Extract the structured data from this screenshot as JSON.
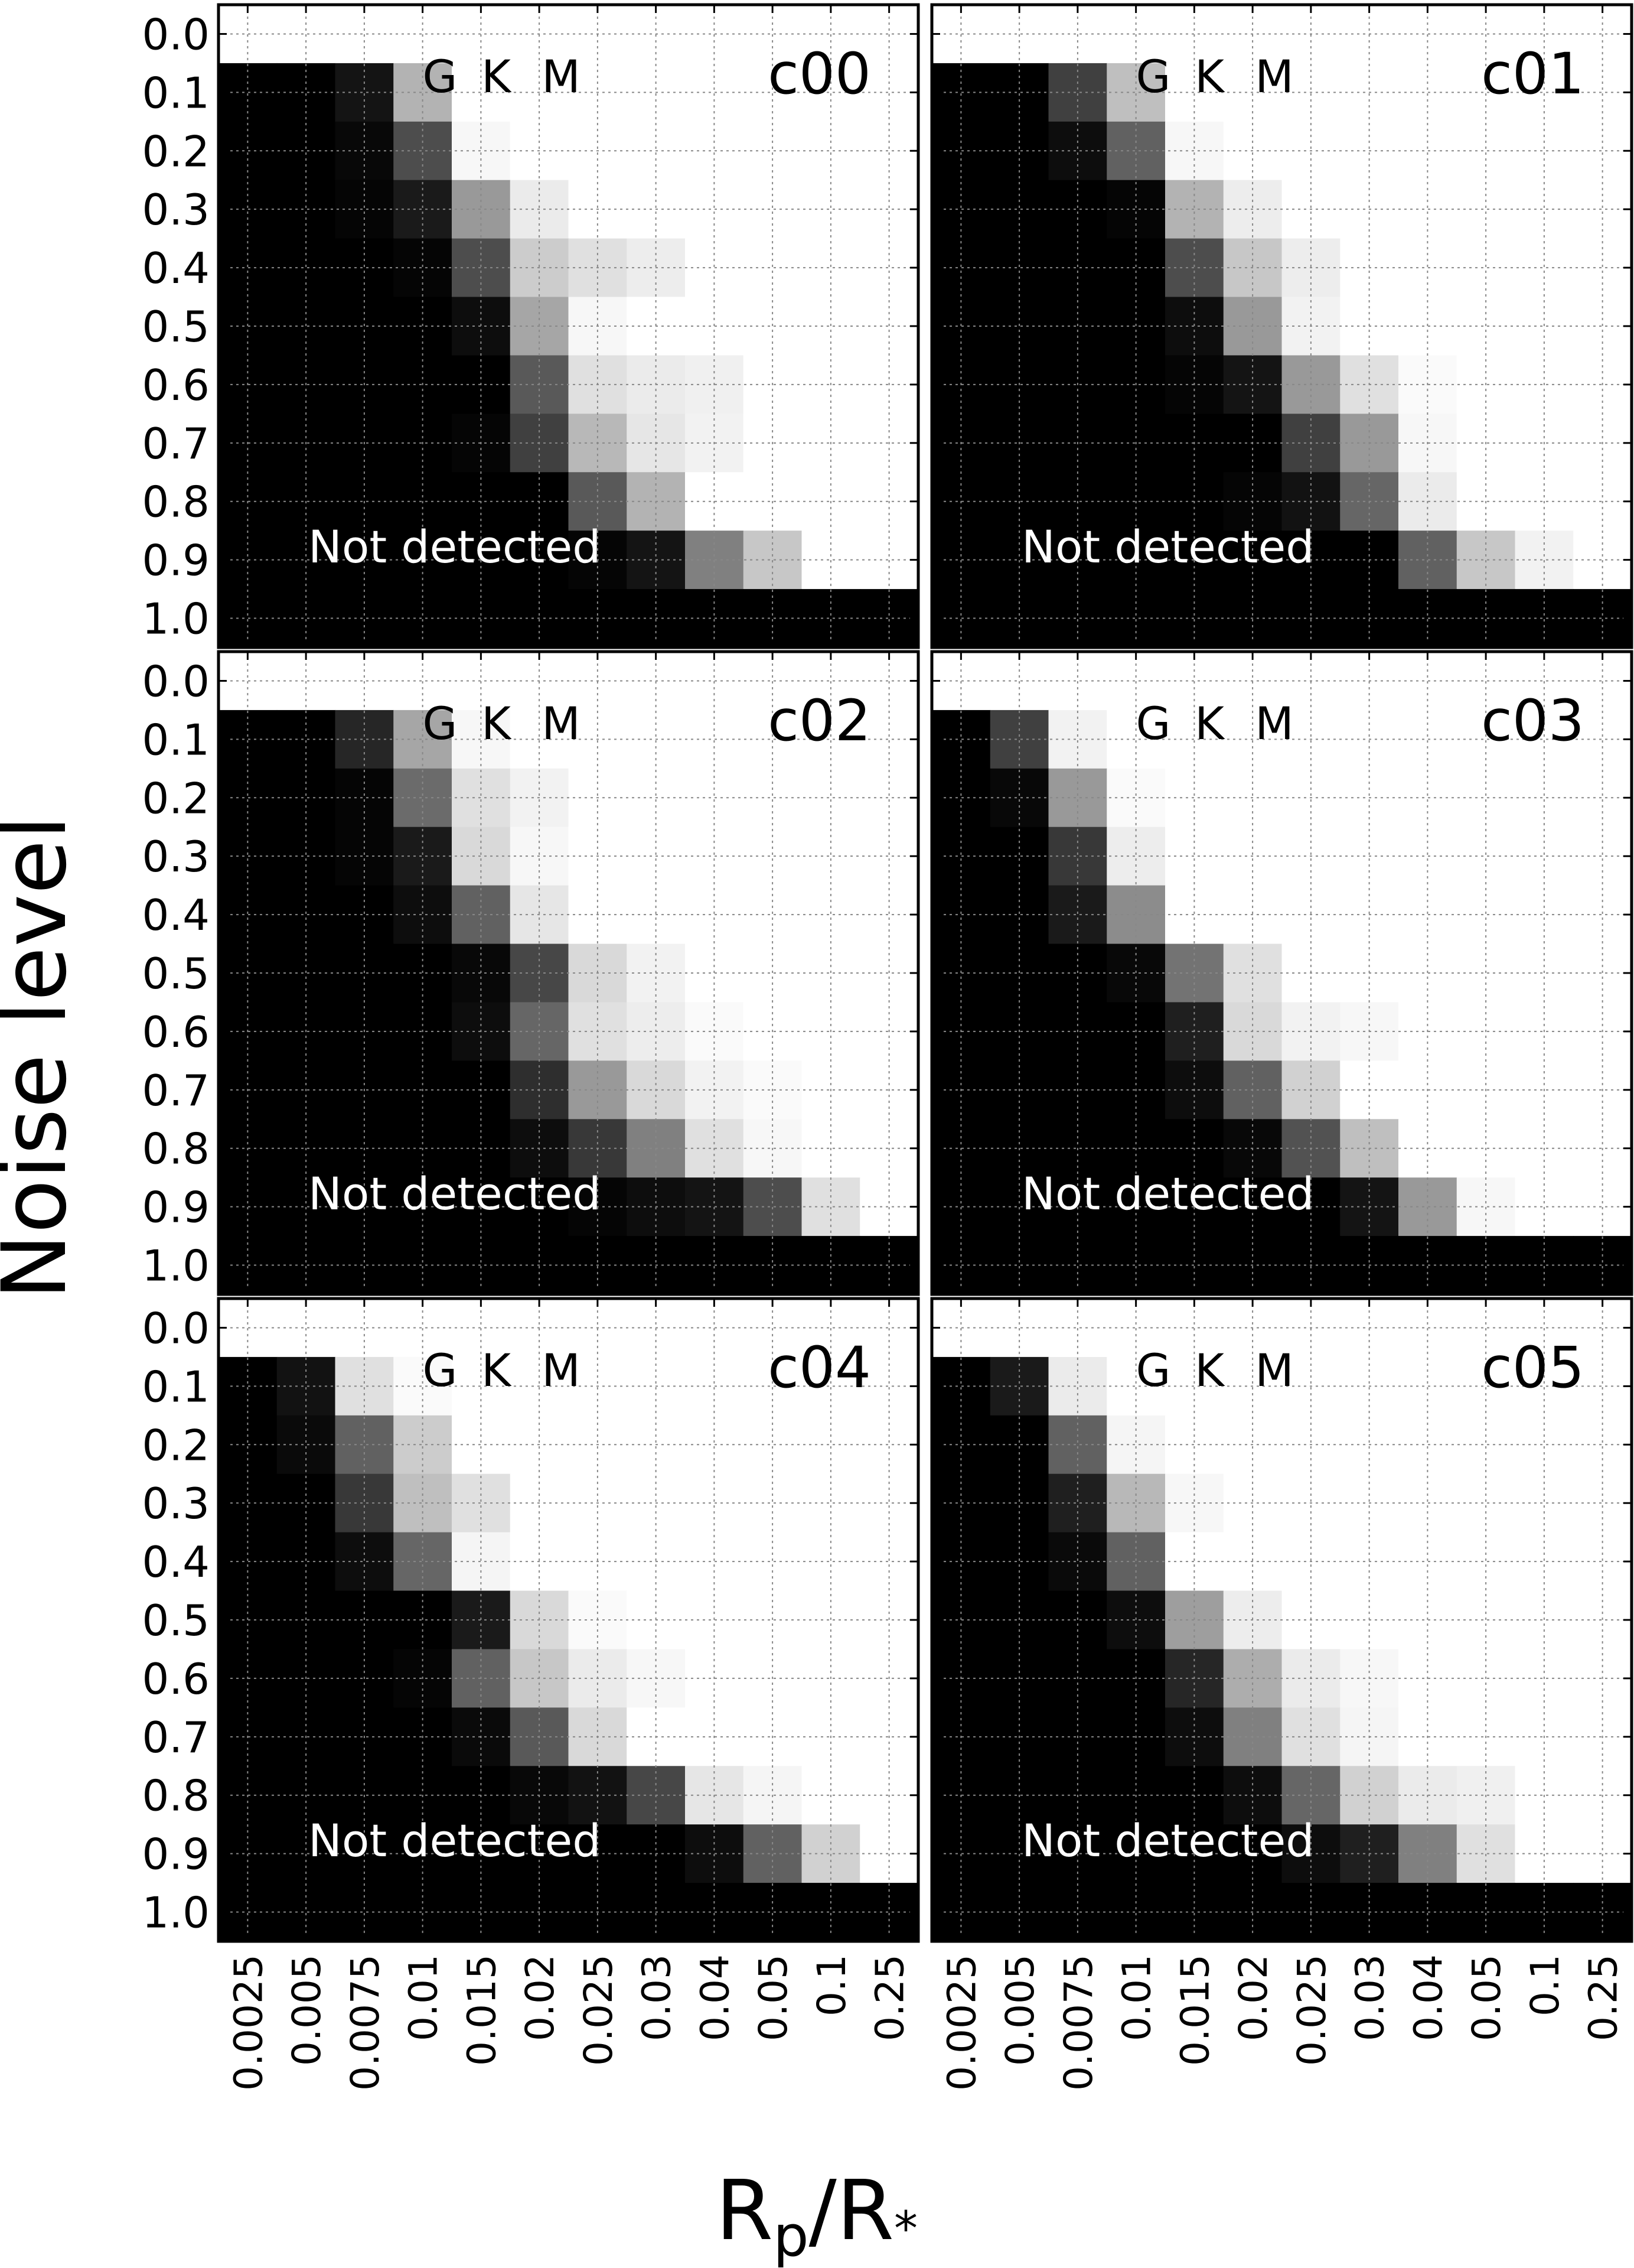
{
  "figure": {
    "ylabel": "Noise level",
    "xlabel_main": "R",
    "xlabel_sub1": "p",
    "xlabel_mid": "/R",
    "xlabel_sub2": "*"
  },
  "chart_data": {
    "type": "heatmap",
    "colormap": "gray (0 = black, 1 = white)",
    "x_categories": [
      "0.0025",
      "0.005",
      "0.0075",
      "0.01",
      "0.015",
      "0.02",
      "0.025",
      "0.03",
      "0.04",
      "0.05",
      "0.1",
      "0.25"
    ],
    "y_categories": [
      "0.0",
      "0.1",
      "0.2",
      "0.3",
      "0.4",
      "0.5",
      "0.6",
      "0.7",
      "0.8",
      "0.9",
      "1.0"
    ],
    "xlabel": "Rp/R*",
    "ylabel": "Noise level",
    "grid": true,
    "panels": [
      {
        "title": "c00",
        "star_labels": [
          "G",
          "K",
          "M"
        ],
        "annotation": "Not detected",
        "values": [
          [
            1,
            1,
            1,
            1,
            1,
            1,
            1,
            1,
            1,
            1,
            1,
            1
          ],
          [
            0,
            0,
            0.08,
            0.7,
            1,
            1,
            1,
            1,
            1,
            1,
            1,
            1
          ],
          [
            0,
            0,
            0.03,
            0.3,
            0.97,
            1,
            1,
            1,
            1,
            1,
            1,
            1
          ],
          [
            0,
            0,
            0.02,
            0.1,
            0.6,
            0.92,
            1,
            1,
            1,
            1,
            1,
            1
          ],
          [
            0,
            0,
            0,
            0.02,
            0.3,
            0.8,
            0.88,
            0.93,
            1,
            1,
            1,
            1
          ],
          [
            0,
            0,
            0,
            0,
            0.05,
            0.65,
            0.97,
            1,
            1,
            1,
            1,
            1
          ],
          [
            0,
            0,
            0,
            0,
            0,
            0.35,
            0.88,
            0.92,
            0.94,
            1,
            1,
            1
          ],
          [
            0,
            0,
            0,
            0,
            0.02,
            0.25,
            0.72,
            0.9,
            0.95,
            1,
            1,
            1
          ],
          [
            0,
            0,
            0,
            0,
            0,
            0,
            0.35,
            0.7,
            1,
            1,
            1,
            1
          ],
          [
            0,
            0,
            0,
            0,
            0,
            0,
            0.02,
            0.08,
            0.5,
            0.78,
            1,
            1
          ],
          [
            0,
            0,
            0,
            0,
            0,
            0,
            0,
            0,
            0,
            0,
            0,
            0
          ]
        ]
      },
      {
        "title": "c01",
        "star_labels": [
          "G",
          "K",
          "M"
        ],
        "annotation": "Not detected",
        "values": [
          [
            1,
            1,
            1,
            1,
            1,
            1,
            1,
            1,
            1,
            1,
            1,
            1
          ],
          [
            0,
            0,
            0.25,
            0.75,
            1,
            1,
            1,
            1,
            1,
            1,
            1,
            1
          ],
          [
            0,
            0,
            0.05,
            0.38,
            0.97,
            1,
            1,
            1,
            1,
            1,
            1,
            1
          ],
          [
            0,
            0,
            0,
            0.02,
            0.7,
            0.93,
            1,
            1,
            1,
            1,
            1,
            1
          ],
          [
            0,
            0,
            0,
            0,
            0.3,
            0.78,
            0.93,
            1,
            1,
            1,
            1,
            1
          ],
          [
            0,
            0,
            0,
            0,
            0.05,
            0.6,
            0.95,
            1,
            1,
            1,
            1,
            1
          ],
          [
            0,
            0,
            0,
            0,
            0.02,
            0.08,
            0.6,
            0.88,
            0.98,
            1,
            1,
            1
          ],
          [
            0,
            0,
            0,
            0,
            0,
            0,
            0.25,
            0.6,
            0.97,
            1,
            1,
            1
          ],
          [
            0,
            0,
            0,
            0,
            0,
            0.02,
            0.07,
            0.4,
            0.92,
            1,
            1,
            1
          ],
          [
            0,
            0,
            0,
            0,
            0,
            0,
            0,
            0,
            0.38,
            0.78,
            0.95,
            1
          ],
          [
            0,
            0,
            0,
            0,
            0,
            0,
            0,
            0,
            0,
            0,
            0,
            0
          ]
        ]
      },
      {
        "title": "c02",
        "star_labels": [
          "G",
          "K",
          "M"
        ],
        "annotation": "Not detected",
        "values": [
          [
            1,
            1,
            1,
            1,
            1,
            1,
            1,
            1,
            1,
            1,
            1,
            1
          ],
          [
            0,
            0,
            0.15,
            0.65,
            0.97,
            1,
            1,
            1,
            1,
            1,
            1,
            1
          ],
          [
            0,
            0,
            0.02,
            0.42,
            0.88,
            0.95,
            1,
            1,
            1,
            1,
            1,
            1
          ],
          [
            0,
            0,
            0.02,
            0.1,
            0.85,
            0.97,
            1,
            1,
            1,
            1,
            1,
            1
          ],
          [
            0,
            0,
            0,
            0.05,
            0.38,
            0.9,
            1,
            1,
            1,
            1,
            1,
            1
          ],
          [
            0,
            0,
            0,
            0,
            0.03,
            0.28,
            0.85,
            0.95,
            1,
            1,
            1,
            1
          ],
          [
            0,
            0,
            0,
            0,
            0.05,
            0.4,
            0.88,
            0.93,
            0.98,
            1,
            1,
            1
          ],
          [
            0,
            0,
            0,
            0,
            0,
            0.18,
            0.6,
            0.85,
            0.95,
            0.98,
            1,
            1
          ],
          [
            0,
            0,
            0,
            0,
            0,
            0.05,
            0.22,
            0.5,
            0.88,
            0.97,
            1,
            1
          ],
          [
            0,
            0,
            0,
            0,
            0,
            0,
            0.02,
            0.05,
            0.08,
            0.3,
            0.88,
            1
          ],
          [
            0,
            0,
            0,
            0,
            0,
            0,
            0,
            0,
            0,
            0,
            0,
            0
          ]
        ]
      },
      {
        "title": "c03",
        "star_labels": [
          "G",
          "K",
          "M"
        ],
        "annotation": "Not detected",
        "values": [
          [
            1,
            1,
            1,
            1,
            1,
            1,
            1,
            1,
            1,
            1,
            1,
            1
          ],
          [
            0,
            0.25,
            0.95,
            1,
            1,
            1,
            1,
            1,
            1,
            1,
            1,
            1
          ],
          [
            0,
            0.03,
            0.6,
            0.98,
            1,
            1,
            1,
            1,
            1,
            1,
            1,
            1
          ],
          [
            0,
            0,
            0.22,
            0.93,
            1,
            1,
            1,
            1,
            1,
            1,
            1,
            1
          ],
          [
            0,
            0,
            0.1,
            0.55,
            1,
            1,
            1,
            1,
            1,
            1,
            1,
            1
          ],
          [
            0,
            0,
            0,
            0.03,
            0.45,
            0.88,
            1,
            1,
            1,
            1,
            1,
            1
          ],
          [
            0,
            0,
            0,
            0,
            0.12,
            0.85,
            0.95,
            0.97,
            1,
            1,
            1,
            1
          ],
          [
            0,
            0,
            0,
            0,
            0.05,
            0.38,
            0.82,
            1,
            1,
            1,
            1,
            1
          ],
          [
            0,
            0,
            0,
            0,
            0,
            0.03,
            0.32,
            0.75,
            1,
            1,
            1,
            1
          ],
          [
            0,
            0,
            0,
            0,
            0,
            0,
            0,
            0.08,
            0.6,
            0.97,
            1,
            1
          ],
          [
            0,
            0,
            0,
            0,
            0,
            0,
            0,
            0,
            0,
            0,
            0,
            0
          ]
        ]
      },
      {
        "title": "c04",
        "star_labels": [
          "G",
          "K",
          "M"
        ],
        "annotation": "Not detected",
        "values": [
          [
            1,
            1,
            1,
            1,
            1,
            1,
            1,
            1,
            1,
            1,
            1,
            1
          ],
          [
            0,
            0.07,
            0.88,
            0.98,
            1,
            1,
            1,
            1,
            1,
            1,
            1,
            1
          ],
          [
            0,
            0.04,
            0.38,
            0.8,
            1,
            1,
            1,
            1,
            1,
            1,
            1,
            1
          ],
          [
            0,
            0,
            0.22,
            0.75,
            0.88,
            1,
            1,
            1,
            1,
            1,
            1,
            1
          ],
          [
            0,
            0,
            0.05,
            0.4,
            0.96,
            1,
            1,
            1,
            1,
            1,
            1,
            1
          ],
          [
            0,
            0,
            0,
            0,
            0.1,
            0.85,
            0.98,
            1,
            1,
            1,
            1,
            1
          ],
          [
            0,
            0,
            0,
            0.02,
            0.38,
            0.78,
            0.92,
            0.97,
            1,
            1,
            1,
            1
          ],
          [
            0,
            0,
            0,
            0,
            0.04,
            0.35,
            0.85,
            1,
            1,
            1,
            1,
            1
          ],
          [
            0,
            0,
            0,
            0,
            0,
            0.03,
            0.07,
            0.28,
            0.9,
            0.96,
            1,
            1
          ],
          [
            0,
            0,
            0,
            0,
            0,
            0,
            0,
            0,
            0.05,
            0.38,
            0.82,
            1
          ],
          [
            0,
            0,
            0,
            0,
            0,
            0,
            0,
            0,
            0,
            0,
            0,
            0
          ]
        ]
      },
      {
        "title": "c05",
        "star_labels": [
          "G",
          "K",
          "M"
        ],
        "annotation": "Not detected",
        "values": [
          [
            1,
            1,
            1,
            1,
            1,
            1,
            1,
            1,
            1,
            1,
            1,
            1
          ],
          [
            0,
            0.1,
            0.92,
            1,
            1,
            1,
            1,
            1,
            1,
            1,
            1,
            1
          ],
          [
            0,
            0,
            0.38,
            0.96,
            1,
            1,
            1,
            1,
            1,
            1,
            1,
            1
          ],
          [
            0,
            0,
            0.12,
            0.72,
            0.97,
            1,
            1,
            1,
            1,
            1,
            1,
            1
          ],
          [
            0,
            0,
            0.04,
            0.38,
            1,
            1,
            1,
            1,
            1,
            1,
            1,
            1
          ],
          [
            0,
            0,
            0,
            0.05,
            0.62,
            0.93,
            1,
            1,
            1,
            1,
            1,
            1
          ],
          [
            0,
            0,
            0,
            0,
            0.15,
            0.68,
            0.92,
            0.97,
            1,
            1,
            1,
            1
          ],
          [
            0,
            0,
            0,
            0,
            0.05,
            0.5,
            0.88,
            0.96,
            1,
            1,
            1,
            1
          ],
          [
            0,
            0,
            0,
            0,
            0,
            0.05,
            0.4,
            0.82,
            0.92,
            0.94,
            1,
            1
          ],
          [
            0,
            0,
            0,
            0,
            0,
            0,
            0.05,
            0.12,
            0.5,
            0.88,
            1,
            1
          ],
          [
            0,
            0,
            0,
            0,
            0,
            0,
            0,
            0,
            0,
            0,
            0,
            0
          ]
        ]
      }
    ]
  }
}
